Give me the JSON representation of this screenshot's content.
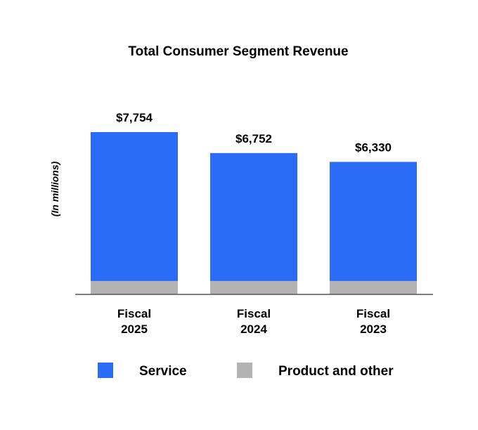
{
  "chart_data": {
    "type": "bar",
    "stacked": true,
    "title": "Total Consumer Segment Revenue",
    "ylabel": "(In millions)",
    "categories": [
      [
        "Fiscal",
        "2025"
      ],
      [
        "Fiscal",
        "2024"
      ],
      [
        "Fiscal",
        "2023"
      ]
    ],
    "totals": [
      7754,
      6752,
      6330
    ],
    "total_labels": [
      "$7,754",
      "$6,752",
      "$6,330"
    ],
    "series": [
      {
        "name": "Product and other",
        "color": "#b3b3b3",
        "values": [
          640,
          640,
          640
        ]
      },
      {
        "name": "Service",
        "color": "#2a6cf6",
        "values": [
          7114,
          6112,
          5690
        ]
      }
    ],
    "ylim": [
      0,
      7754
    ],
    "grid": false,
    "legend_position": "bottom"
  }
}
